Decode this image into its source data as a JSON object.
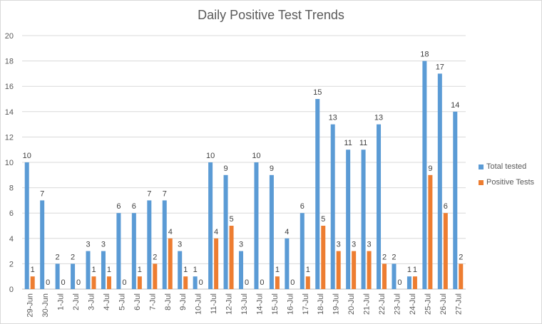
{
  "chart_data": {
    "type": "bar",
    "title": "Daily Positive Test Trends",
    "xlabel": "",
    "ylabel": "",
    "ylim": [
      0,
      20
    ],
    "yticks": [
      0,
      2,
      4,
      6,
      8,
      10,
      12,
      14,
      16,
      18,
      20
    ],
    "grid": true,
    "legend_position": "right",
    "categories": [
      "29-Jun",
      "30-Jun",
      "1-Jul",
      "2-Jul",
      "3-Jul",
      "4-Jul",
      "5-Jul",
      "6-Jul",
      "7-Jul",
      "8-Jul",
      "9-Jul",
      "10-Jul",
      "11-Jul",
      "12-Jul",
      "13-Jul",
      "14-Jul",
      "15-Jul",
      "16-Jul",
      "17-Jul",
      "18-Jul",
      "19-Jul",
      "20-Jul",
      "21-Jul",
      "22-Jul",
      "23-Jul",
      "24-Jul",
      "25-Jul",
      "26-Jul",
      "27-Jul"
    ],
    "series": [
      {
        "name": "Total tested",
        "color": "#5b9bd5",
        "values": [
          10,
          7,
          2,
          2,
          3,
          3,
          6,
          6,
          7,
          7,
          3,
          1,
          10,
          9,
          3,
          10,
          9,
          4,
          6,
          15,
          13,
          11,
          11,
          13,
          2,
          1,
          18,
          17,
          14
        ]
      },
      {
        "name": "Positive Tests",
        "color": "#ed7d31",
        "values": [
          1,
          0,
          0,
          0,
          1,
          1,
          0,
          1,
          2,
          4,
          1,
          0,
          4,
          5,
          0,
          0,
          1,
          0,
          1,
          5,
          3,
          3,
          3,
          2,
          0,
          1,
          9,
          6,
          2
        ]
      }
    ]
  }
}
